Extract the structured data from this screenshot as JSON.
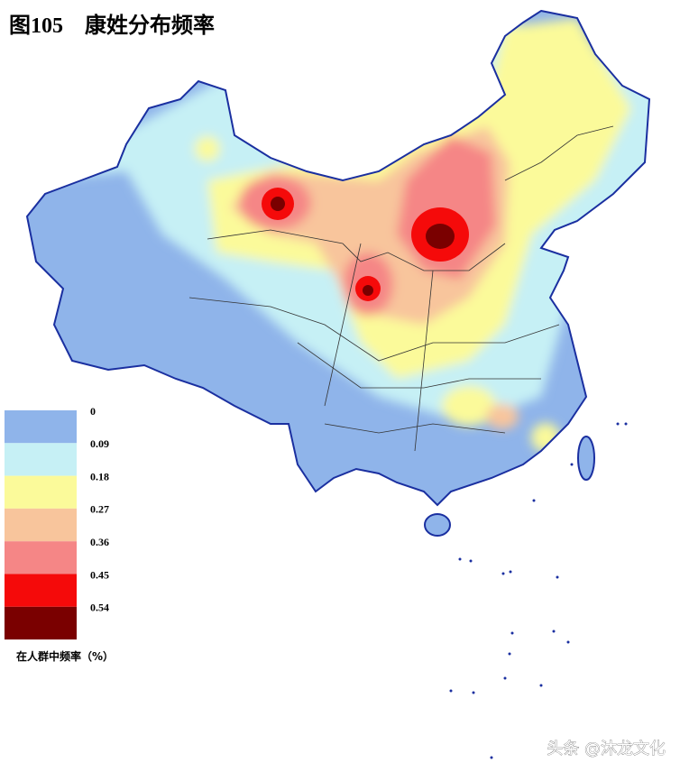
{
  "header": {
    "title": "图105　康姓分布频率"
  },
  "legend": {
    "items": [
      {
        "value": 0,
        "color": "#8fb4ea"
      },
      {
        "value": 0.09,
        "color": "#c6f0f5"
      },
      {
        "value": 0.18,
        "color": "#fbfa9a"
      },
      {
        "value": 0.27,
        "color": "#f8c59c"
      },
      {
        "value": 0.36,
        "color": "#f58686"
      },
      {
        "value": 0.45,
        "color": "#f50a0a"
      },
      {
        "value": 0.54,
        "color": "#7a0000"
      }
    ],
    "caption": "在人群中频率（%）"
  },
  "watermark": "头条 @沐龙文化"
}
